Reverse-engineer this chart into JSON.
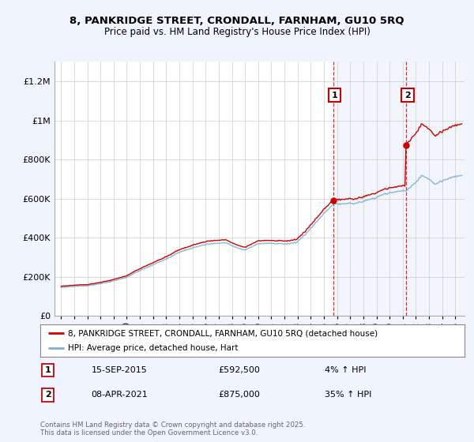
{
  "title": "8, PANKRIDGE STREET, CRONDALL, FARNHAM, GU10 5RQ",
  "subtitle": "Price paid vs. HM Land Registry's House Price Index (HPI)",
  "legend_line1": "8, PANKRIDGE STREET, CRONDALL, FARNHAM, GU10 5RQ (detached house)",
  "legend_line2": "HPI: Average price, detached house, Hart",
  "annotation1_label": "1",
  "annotation1_date": "15-SEP-2015",
  "annotation1_price": "£592,500",
  "annotation1_pct": "4% ↑ HPI",
  "annotation2_label": "2",
  "annotation2_date": "08-APR-2021",
  "annotation2_price": "£875,000",
  "annotation2_pct": "35% ↑ HPI",
  "copyright": "Contains HM Land Registry data © Crown copyright and database right 2025.\nThis data is licensed under the Open Government Licence v3.0.",
  "hpi_color": "#7bafd4",
  "price_color": "#cc0000",
  "sale1_x": 2015.71,
  "sale2_x": 2021.27,
  "sale1_y": 592500,
  "sale2_y": 875000,
  "ylim": [
    0,
    1300000
  ],
  "xlim": [
    1994.5,
    2025.7
  ],
  "yticks": [
    0,
    200000,
    400000,
    600000,
    800000,
    1000000,
    1200000
  ],
  "ytick_labels": [
    "£0",
    "£200K",
    "£400K",
    "£600K",
    "£800K",
    "£1M",
    "£1.2M"
  ],
  "bg_color": "#f0f4ff",
  "plot_bg": "#ffffff",
  "shade_start": 2015.71,
  "shade_end": 2025.7
}
